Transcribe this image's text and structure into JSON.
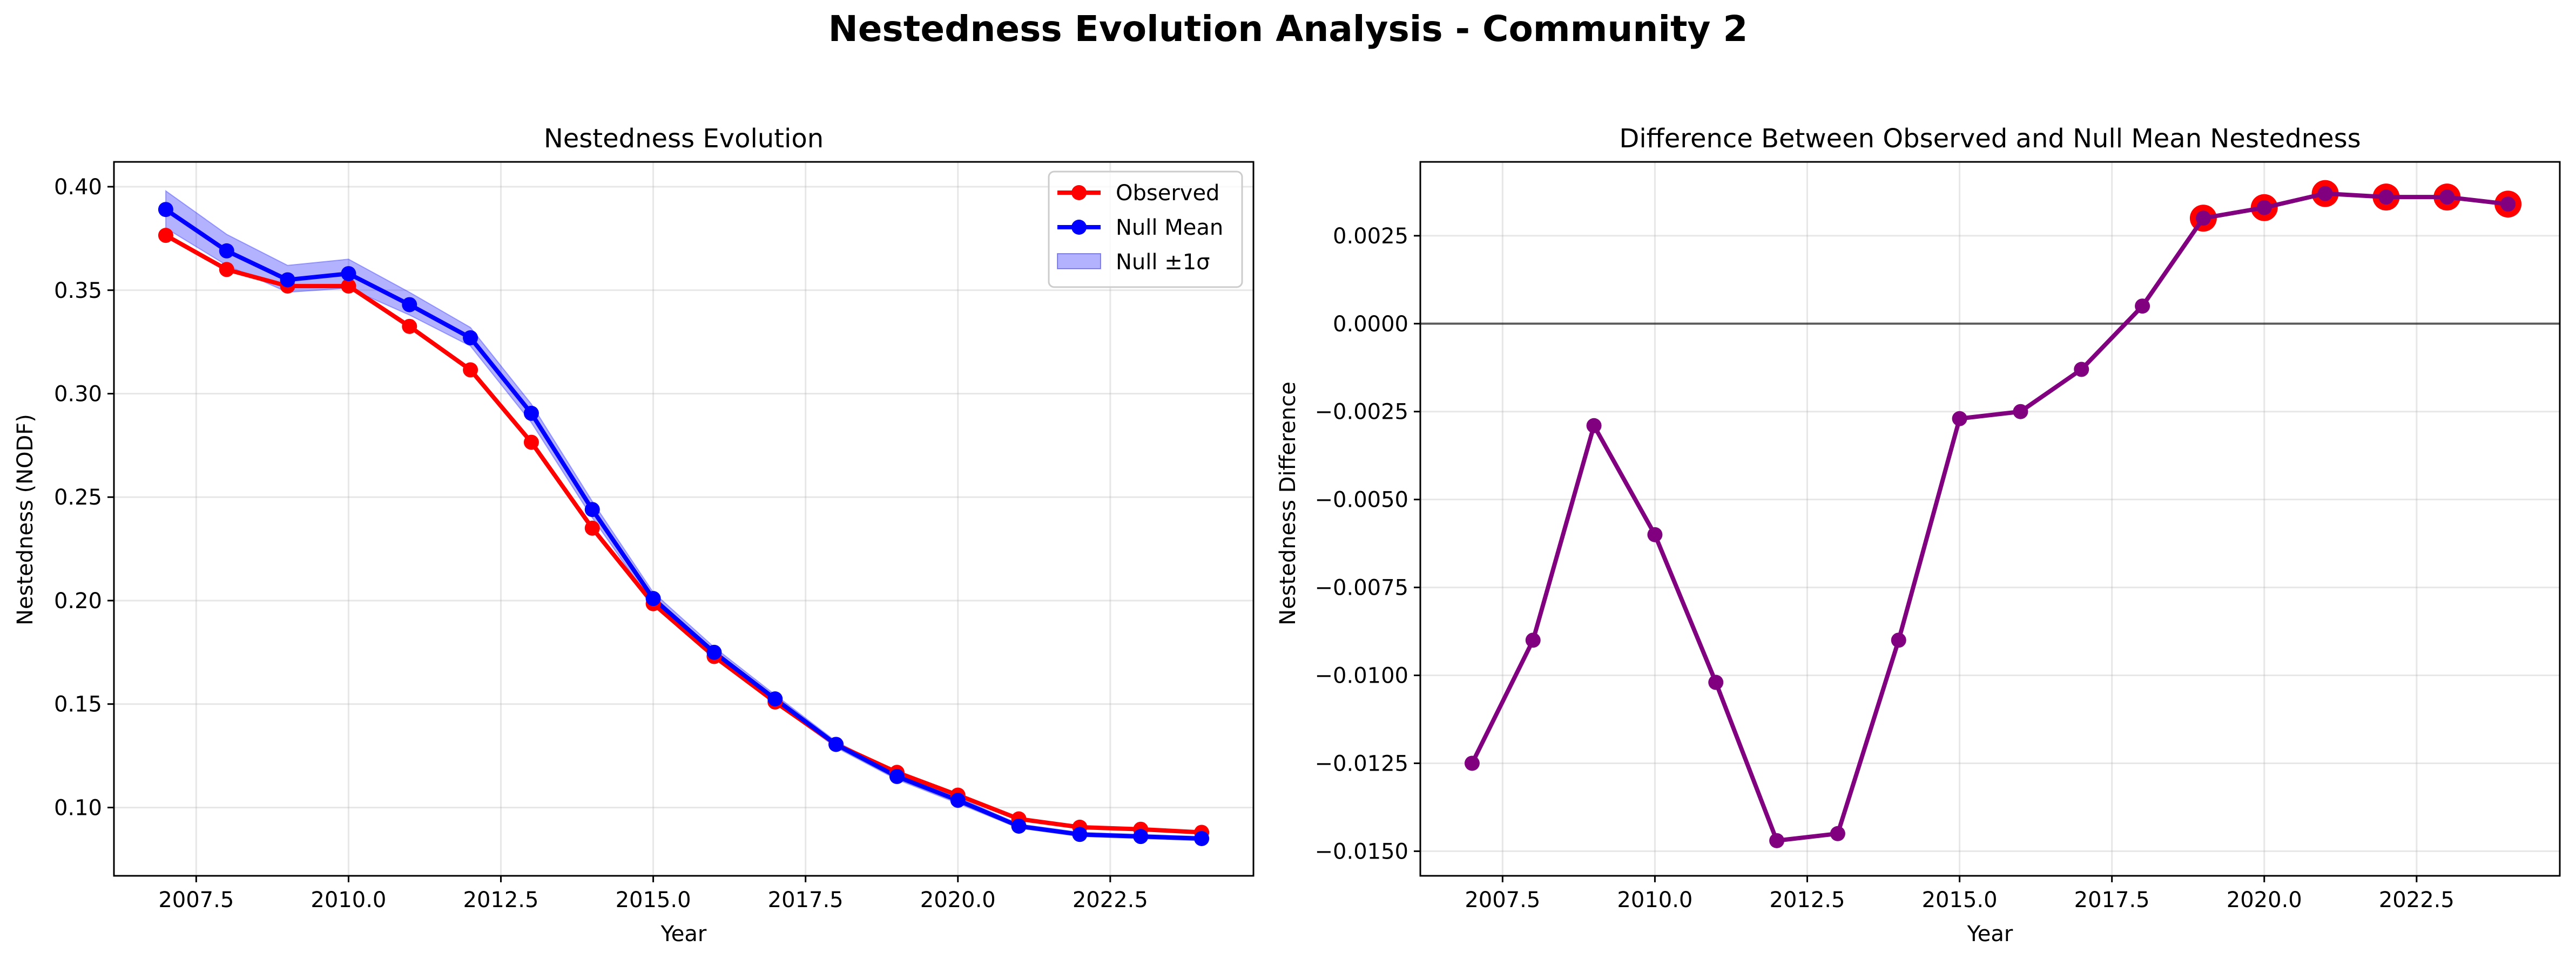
{
  "suptitle": "Nestedness Evolution Analysis - Community 2",
  "chart_data": [
    {
      "type": "line",
      "title": "Nestedness Evolution",
      "xlabel": "Year",
      "ylabel": "Nestedness (NODF)",
      "xlim": [
        2006.15,
        2024.85
      ],
      "ylim": [
        0.067,
        0.412
      ],
      "x_ticks": [
        2007.5,
        2010.0,
        2012.5,
        2015.0,
        2017.5,
        2020.0,
        2022.5
      ],
      "x_tick_labels": [
        "2007.5",
        "2010.0",
        "2012.5",
        "2015.0",
        "2017.5",
        "2020.0",
        "2022.5"
      ],
      "y_ticks": [
        0.1,
        0.15,
        0.2,
        0.25,
        0.3,
        0.35,
        0.4
      ],
      "y_tick_labels": [
        "0.10",
        "0.15",
        "0.20",
        "0.25",
        "0.30",
        "0.35",
        "0.40"
      ],
      "grid": true,
      "legend_position": "top-right",
      "x": [
        2007,
        2008,
        2009,
        2010,
        2011,
        2012,
        2013,
        2014,
        2015,
        2016,
        2017,
        2018,
        2019,
        2020,
        2021,
        2022,
        2023,
        2024
      ],
      "series": [
        {
          "name": "Observed",
          "color": "#ff0000",
          "values": [
            0.3765,
            0.36,
            0.352,
            0.352,
            0.3325,
            0.3115,
            0.2765,
            0.235,
            0.1985,
            0.173,
            0.151,
            0.1305,
            0.117,
            0.106,
            0.0945,
            0.0905,
            0.0895,
            0.088
          ]
        },
        {
          "name": "Null Mean",
          "color": "#0000ff",
          "values": [
            0.389,
            0.369,
            0.355,
            0.358,
            0.343,
            0.327,
            0.2905,
            0.244,
            0.201,
            0.175,
            0.1525,
            0.1305,
            0.115,
            0.1035,
            0.091,
            0.087,
            0.086,
            0.085
          ]
        }
      ],
      "band": {
        "name": "Null ±1σ",
        "color": "#0000ff",
        "lower": [
          0.38,
          0.362,
          0.349,
          0.351,
          0.338,
          0.323,
          0.286,
          0.24,
          0.198,
          0.1725,
          0.1505,
          0.129,
          0.1135,
          0.102,
          0.09,
          0.086,
          0.085,
          0.084
        ],
        "upper": [
          0.398,
          0.377,
          0.362,
          0.365,
          0.349,
          0.332,
          0.295,
          0.248,
          0.204,
          0.1775,
          0.1545,
          0.132,
          0.1165,
          0.105,
          0.092,
          0.088,
          0.087,
          0.086
        ]
      }
    },
    {
      "type": "line",
      "title": "Difference Between Observed and Null Mean Nestedness",
      "xlabel": "Year",
      "ylabel": "Nestedness Difference",
      "xlim": [
        2006.15,
        2024.85
      ],
      "ylim": [
        -0.0157,
        0.0046
      ],
      "x_ticks": [
        2007.5,
        2010.0,
        2012.5,
        2015.0,
        2017.5,
        2020.0,
        2022.5
      ],
      "x_tick_labels": [
        "2007.5",
        "2010.0",
        "2012.5",
        "2015.0",
        "2017.5",
        "2020.0",
        "2022.5"
      ],
      "y_ticks": [
        -0.015,
        -0.0125,
        -0.01,
        -0.0075,
        -0.005,
        -0.0025,
        0.0,
        0.0025
      ],
      "y_tick_labels": [
        "−0.0150",
        "−0.0125",
        "−0.0100",
        "−0.0075",
        "−0.0050",
        "−0.0025",
        "0.0000",
        "0.0025"
      ],
      "grid": true,
      "zero_line": true,
      "x": [
        2007,
        2008,
        2009,
        2010,
        2011,
        2012,
        2013,
        2014,
        2015,
        2016,
        2017,
        2018,
        2019,
        2020,
        2021,
        2022,
        2023,
        2024
      ],
      "series": [
        {
          "name": "",
          "color": "#800080",
          "values": [
            -0.0125,
            -0.009,
            -0.0029,
            -0.006,
            -0.0102,
            -0.0147,
            -0.0145,
            -0.009,
            -0.0027,
            -0.0025,
            -0.0013,
            0.0005,
            0.003,
            0.0033,
            0.0037,
            0.0036,
            0.0036,
            0.0034
          ]
        }
      ],
      "highlighted_x": [
        2019,
        2020,
        2021,
        2022,
        2023,
        2024
      ],
      "highlight_color": "#ff0000"
    }
  ]
}
